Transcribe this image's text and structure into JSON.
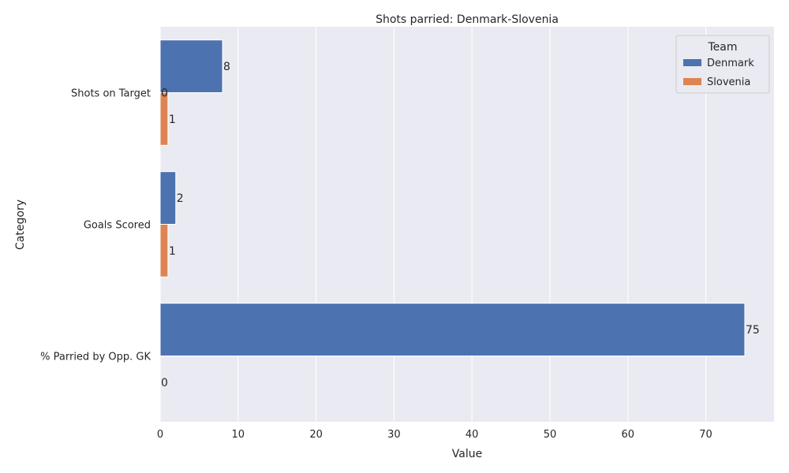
{
  "chart_data": {
    "type": "bar",
    "orientation": "horizontal",
    "title": "Shots parried: Denmark-Slovenia",
    "xlabel": "Value",
    "ylabel": "Category",
    "categories": [
      "Shots on Target",
      "Goals Scored",
      "% Parried by Opp. GK"
    ],
    "series": [
      {
        "name": "Denmark",
        "color": "#4c72b0",
        "values": [
          8,
          2,
          75
        ],
        "labels": [
          "8",
          "2",
          "75"
        ]
      },
      {
        "name": "Slovenia",
        "color": "#dd8452",
        "values": [
          1,
          1,
          0
        ],
        "labels": [
          "1",
          "1",
          "0"
        ]
      }
    ],
    "extra_labels": [
      "0"
    ],
    "xlim": [
      0,
      78.75
    ],
    "xticks": [
      0,
      10,
      20,
      30,
      40,
      50,
      60,
      70
    ],
    "grid": true,
    "background": "#eaeaf2",
    "legend": {
      "title": "Team",
      "position": "top-right"
    }
  }
}
